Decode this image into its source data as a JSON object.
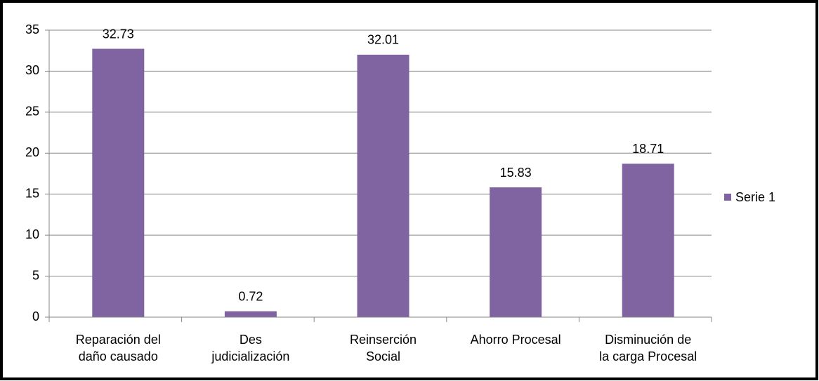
{
  "chart_data": {
    "type": "bar",
    "categories": [
      "Reparación del\ndaño causado",
      "Des\njudicialización",
      "Reinserción\nSocial",
      "Ahorro Procesal",
      "Disminución de\nla carga Procesal"
    ],
    "series": [
      {
        "name": "Serie 1",
        "color": "#8064a2",
        "values": [
          32.73,
          0.72,
          32.01,
          15.83,
          18.71
        ]
      }
    ],
    "ylim": [
      0,
      35
    ],
    "yticks": [
      0,
      5,
      10,
      15,
      20,
      25,
      30,
      35
    ],
    "grid": true,
    "legend": "right"
  }
}
